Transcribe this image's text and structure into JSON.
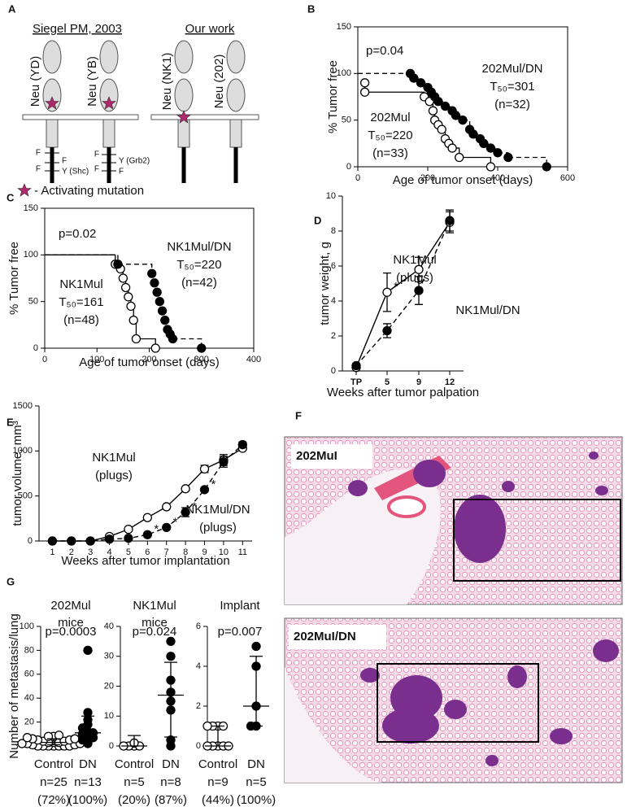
{
  "panel_labels": [
    "A",
    "B",
    "C",
    "D",
    "E",
    "F",
    "G"
  ],
  "diagram": {
    "groups": [
      "Siegel PM, 2003",
      "Our work"
    ],
    "receptors": [
      "Neu (YD)",
      "Neu (YB)",
      "Neu (NK1)",
      "Neu (202)"
    ],
    "sites": [
      "F",
      "F",
      "F",
      "Y (Shc)",
      "F",
      "Y (Grb2)",
      "F",
      "F"
    ],
    "legend": "- Activating mutation"
  },
  "images": {
    "labels": [
      "202MuI",
      "202MuI/DN"
    ]
  },
  "chart_data": [
    {
      "type": "survival",
      "frame": true,
      "x_label": "Age of tumor onset (days)",
      "y_label": "% Tumor free",
      "xlim": [
        0,
        600
      ],
      "xticks": [
        0,
        200,
        400,
        600
      ],
      "ylim": [
        0,
        150
      ],
      "yticks": [
        0,
        50,
        100,
        150
      ],
      "p_value": "p=0.04",
      "series": [
        {
          "name": "202Mul",
          "stat": "T₅₀=220",
          "n": "(n=33)",
          "marker": "open",
          "line_style": "solid",
          "color": "#000000",
          "x": [
            20,
            20,
            190,
            205,
            215,
            220,
            230,
            240,
            250,
            260,
            270,
            290,
            380
          ],
          "values": [
            90,
            80,
            75,
            70,
            60,
            50,
            45,
            40,
            30,
            25,
            20,
            10,
            0
          ]
        },
        {
          "name": "202Mul/DN",
          "stat": "T₅₀=301",
          "n": "(n=32)",
          "marker": "filled",
          "line_style": "dashed",
          "color": "#000000",
          "x": [
            0,
            150,
            160,
            180,
            200,
            210,
            220,
            230,
            250,
            270,
            280,
            300,
            320,
            330,
            350,
            360,
            380,
            400,
            430,
            540
          ],
          "values": [
            100,
            100,
            95,
            90,
            85,
            80,
            75,
            70,
            65,
            60,
            55,
            50,
            40,
            35,
            30,
            25,
            20,
            15,
            10,
            0
          ]
        }
      ]
    },
    {
      "type": "survival",
      "frame": true,
      "x_label": "Age of tumor onset (days)",
      "y_label": "% Tumor free",
      "xlim": [
        0,
        400
      ],
      "xticks": [
        0,
        100,
        200,
        300,
        400
      ],
      "ylim": [
        0,
        150
      ],
      "yticks": [
        0,
        50,
        100,
        150
      ],
      "p_value": "p=0.02",
      "series": [
        {
          "name": "NK1Mul",
          "stat": "T₅₀=161",
          "n": "(n=48)",
          "marker": "open",
          "line_style": "solid",
          "color": "#000000",
          "x": [
            0,
            135,
            145,
            150,
            155,
            160,
            165,
            170,
            175,
            212
          ],
          "values": [
            100,
            90,
            85,
            75,
            65,
            55,
            45,
            30,
            10,
            0
          ]
        },
        {
          "name": "NK1Mul/DN",
          "stat": "T₅₀=220",
          "n": "(n=42)",
          "marker": "filled",
          "line_style": "dashed",
          "color": "#000000",
          "x": [
            0,
            140,
            205,
            210,
            215,
            220,
            225,
            230,
            235,
            240,
            245,
            300
          ],
          "values": [
            100,
            90,
            80,
            70,
            60,
            50,
            40,
            30,
            20,
            15,
            10,
            0
          ]
        }
      ]
    },
    {
      "type": "line",
      "x_label": "Weeks after tumor palpation",
      "y_label": "tumor weight, g",
      "categories": [
        "TP",
        "5",
        "9",
        "12"
      ],
      "ylim": [
        0,
        10
      ],
      "yticks": [
        0,
        2,
        4,
        6,
        8,
        10
      ],
      "series": [
        {
          "name": "NK1Mul",
          "note": "(plugs)",
          "marker": "open",
          "line_style": "solid",
          "color": "#000000",
          "values": [
            0.2,
            4.5,
            5.8,
            8.5
          ],
          "errors": [
            0.1,
            1.1,
            0.7,
            0.6
          ],
          "stars": {
            "label": "*",
            "at": [
              1
            ]
          }
        },
        {
          "name": "NK1Mul/DN",
          "marker": "filled",
          "line_style": "dashed",
          "color": "#000000",
          "values": [
            0.3,
            2.3,
            4.6,
            8.6
          ],
          "errors": [
            0.1,
            0.4,
            0.8,
            0.6
          ]
        }
      ]
    },
    {
      "type": "line",
      "x_label": "Weeks after tumor implantation",
      "y_label": "tumor volume, mm³",
      "x": [
        1,
        2,
        3,
        4,
        5,
        6,
        7,
        8,
        9,
        10,
        11
      ],
      "xlim": [
        0.3,
        11.5
      ],
      "xticks": [
        1,
        2,
        3,
        4,
        5,
        6,
        7,
        8,
        9,
        10,
        11
      ],
      "ylim": [
        0,
        1500
      ],
      "yticks": [
        0,
        500,
        1000,
        1500
      ],
      "series": [
        {
          "name": "NK1Mul",
          "note": "(plugs)",
          "marker": "open",
          "line_style": "solid",
          "color": "#000000",
          "values": [
            0,
            0,
            0,
            50,
            130,
            260,
            380,
            580,
            800,
            900,
            1030
          ],
          "errors": [
            null,
            null,
            null,
            null,
            null,
            null,
            null,
            null,
            40,
            60,
            null
          ]
        },
        {
          "name": "NK1Mul/DN",
          "note": "(plugs)",
          "marker": "filled",
          "line_style": "dashed",
          "color": "#000000",
          "values": [
            0,
            0,
            0,
            20,
            30,
            70,
            150,
            320,
            570,
            880,
            1070
          ],
          "errors": [
            null,
            null,
            null,
            null,
            null,
            null,
            null,
            50,
            null,
            60,
            30
          ],
          "stars": {
            "label": "*",
            "at": [
              5,
              6,
              7,
              8
            ]
          }
        }
      ]
    },
    {
      "type": "dot",
      "y_label": "Number of metastasis/lung",
      "title": [
        "202Mul",
        "mice"
      ],
      "p_value": "p=0.0003",
      "categories": [
        "Control",
        "DN"
      ],
      "n_labels": [
        "n=25",
        "n=13"
      ],
      "percent_labels": [
        "(72%)",
        "(100%)"
      ],
      "ylim": [
        0,
        100
      ],
      "yticks": [
        0,
        20,
        40,
        60,
        80,
        100
      ],
      "groups": [
        {
          "marker": "open",
          "values": [
            0,
            0,
            0,
            0,
            0,
            0,
            0,
            1,
            1,
            2,
            2,
            2,
            3,
            3,
            3,
            4,
            4,
            5,
            5,
            6,
            6,
            7,
            8,
            8,
            9
          ],
          "center": 3,
          "low": 1,
          "high": 6
        },
        {
          "marker": "filled",
          "values": [
            2,
            3,
            5,
            7,
            8,
            10,
            11,
            12,
            15,
            18,
            22,
            28,
            80
          ],
          "center": 11,
          "low": 5,
          "high": 25
        }
      ]
    },
    {
      "type": "dot",
      "title": [
        "NK1Mul",
        "mice"
      ],
      "p_value": "p=0.024",
      "categories": [
        "Control",
        "DN"
      ],
      "n_labels": [
        "n=5",
        "n=8"
      ],
      "percent_labels": [
        "(20%)",
        "(87%)"
      ],
      "ylim": [
        0,
        40
      ],
      "yticks": [
        0,
        10,
        20,
        30,
        40
      ],
      "groups": [
        {
          "marker": "open",
          "values": [
            0,
            0,
            0,
            0,
            1
          ],
          "center": 0,
          "low": 0,
          "high": 3.5
        },
        {
          "marker": "filled",
          "values": [
            0,
            2,
            12,
            15,
            18,
            22,
            30,
            35
          ],
          "center": 17,
          "low": 3,
          "high": 28
        }
      ]
    },
    {
      "type": "dot",
      "title": [
        "Implant"
      ],
      "p_value": "p=0.007",
      "categories": [
        "Control",
        "DN"
      ],
      "n_labels": [
        "n=9",
        "n=5"
      ],
      "percent_labels": [
        "(44%)",
        "(100%)"
      ],
      "ylim": [
        0,
        6
      ],
      "yticks": [
        0,
        2,
        4,
        6
      ],
      "groups": [
        {
          "marker": "open",
          "values": [
            0,
            0,
            0,
            0,
            0,
            1,
            1,
            1,
            1
          ],
          "center": 0,
          "low": 0,
          "high": 1
        },
        {
          "marker": "filled",
          "values": [
            1,
            1,
            2,
            4,
            5
          ],
          "center": 2,
          "low": 1,
          "high": 4.5
        }
      ]
    }
  ]
}
